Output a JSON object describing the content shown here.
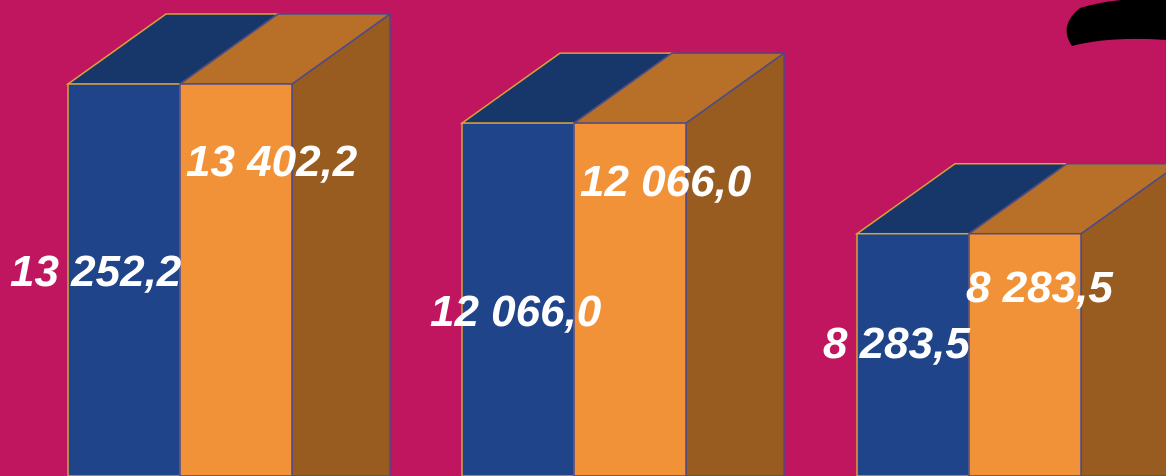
{
  "colors": {
    "background": "#c0155f",
    "series_a": "#1f4489",
    "series_a_top": "#173669",
    "series_b": "#f29238",
    "series_b_top": "#b87029",
    "series_b_side": "#985c21"
  },
  "chart_data": {
    "type": "bar",
    "style": "3d-stacked-columns",
    "title": "",
    "xlabel": "",
    "ylabel": "",
    "categories": [
      "",
      "",
      ""
    ],
    "series": [
      {
        "values": [
          13252.2,
          12066.0,
          8283.5
        ],
        "labels": [
          "13 252,2",
          "12 066,0",
          "8 283,5"
        ]
      },
      {
        "values": [
          13402.2,
          12066.0,
          8283.5
        ],
        "labels": [
          "13 402,2",
          "12 066,0",
          "8 283,5"
        ]
      }
    ],
    "grid": false,
    "legend": "none"
  }
}
